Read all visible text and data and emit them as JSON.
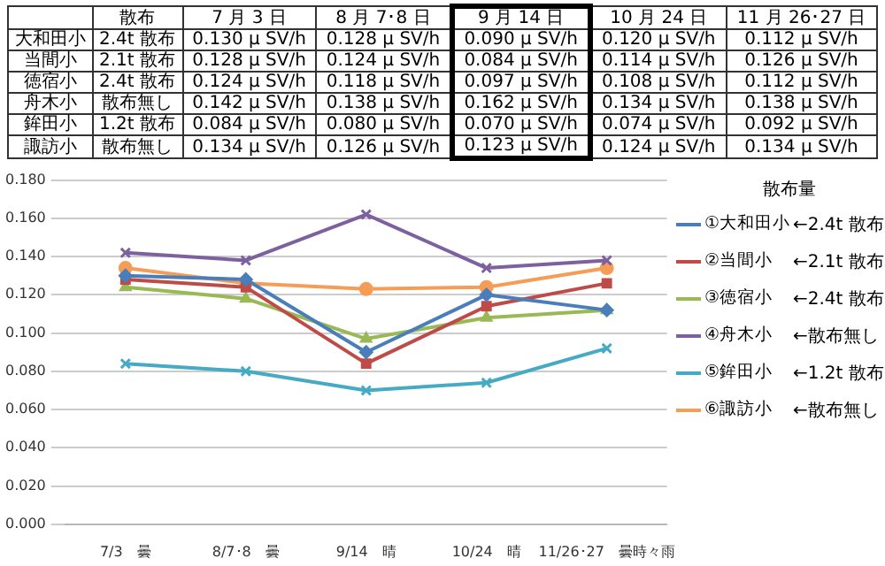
{
  "chart_data": [
    {
      "type": "other",
      "categories": [
        "散布",
        "7 月 3 日",
        "8 月 7･8 日",
        "9 月 14 日",
        "10 月 24 日",
        "11 月 26･27 日"
      ],
      "y_categories": [
        "大和田小",
        "当間小",
        "徳宿小",
        "舟木小",
        "鉾田小",
        "諏訪小"
      ],
      "cell_labels": [
        [
          "2.4t 散布",
          "0.130 μ SV/h",
          "0.128 μ SV/h",
          "0.090 μ SV/h",
          "0.120 μ SV/h",
          "0.112 μ SV/h"
        ],
        [
          "2.1t 散布",
          "0.128 μ SV/h",
          "0.124 μ SV/h",
          "0.084 μ SV/h",
          "0.114 μ SV/h",
          "0.126 μ SV/h"
        ],
        [
          "2.4t 散布",
          "0.124 μ SV/h",
          "0.118 μ SV/h",
          "0.097 μ SV/h",
          "0.108 μ SV/h",
          "0.112 μ SV/h"
        ],
        [
          "散布無し",
          "0.142 μ SV/h",
          "0.138 μ SV/h",
          "0.162 μ SV/h",
          "0.134 μ SV/h",
          "0.138 μ SV/h"
        ],
        [
          "1.2t 散布",
          "0.084 μ SV/h",
          "0.080 μ SV/h",
          "0.070 μ SV/h",
          "0.074 μ SV/h",
          "0.092 μ SV/h"
        ],
        [
          "散布無し",
          "0.134 μ SV/h",
          "0.126 μ SV/h",
          "0.123 μ SV/h",
          "0.124 μ SV/h",
          "0.134 μ SV/h"
        ]
      ]
    },
    {
      "type": "line",
      "categories": [
        "7/3　曇",
        "8/7･8　曇",
        "9/14　晴",
        "10/24　晴",
        "11/26･27　曇時々雨"
      ],
      "series": [
        {
          "name": "①大和田小",
          "color": "#4a7ebb",
          "marker": "diamond",
          "values": [
            0.13,
            0.128,
            0.09,
            0.12,
            0.112
          ]
        },
        {
          "name": "②当間小",
          "color": "#be4b48",
          "marker": "square",
          "values": [
            0.128,
            0.124,
            0.084,
            0.114,
            0.126
          ]
        },
        {
          "name": "③徳宿小",
          "color": "#98b954",
          "marker": "triangle",
          "values": [
            0.124,
            0.118,
            0.097,
            0.108,
            0.112
          ]
        },
        {
          "name": "④舟木小",
          "color": "#7d60a0",
          "marker": "cross",
          "values": [
            0.142,
            0.138,
            0.162,
            0.134,
            0.138
          ]
        },
        {
          "name": "⑤鉾田小",
          "color": "#46aac5",
          "marker": "cross",
          "values": [
            0.084,
            0.08,
            0.07,
            0.074,
            0.092
          ]
        },
        {
          "name": "⑥諏訪小",
          "color": "#f59d56",
          "marker": "circle",
          "values": [
            0.134,
            0.126,
            0.123,
            0.124,
            0.134
          ]
        }
      ],
      "ylim": [
        0,
        0.18
      ],
      "yticks": [
        {
          "value": 0,
          "label": "0.000"
        },
        {
          "value": 0.02,
          "label": "0.020"
        },
        {
          "value": 0.04,
          "label": "0.040"
        },
        {
          "value": 0.06,
          "label": "0.060"
        },
        {
          "value": 0.08,
          "label": "0.080"
        },
        {
          "value": 0.1,
          "label": "0.100"
        },
        {
          "value": 0.12,
          "label": "0.120"
        },
        {
          "value": 0.14,
          "label": "0.140"
        },
        {
          "value": 0.16,
          "label": "0.160"
        },
        {
          "value": 0.18,
          "label": "0.180"
        }
      ],
      "grid": "y",
      "legend": "right",
      "legend_title": "散布量",
      "annotations": [
        "←2.4t 散布",
        "←2.1t 散布",
        "←2.4t 散布",
        "←散布無し",
        "←1.2t 散布",
        "←散布無し"
      ]
    }
  ]
}
